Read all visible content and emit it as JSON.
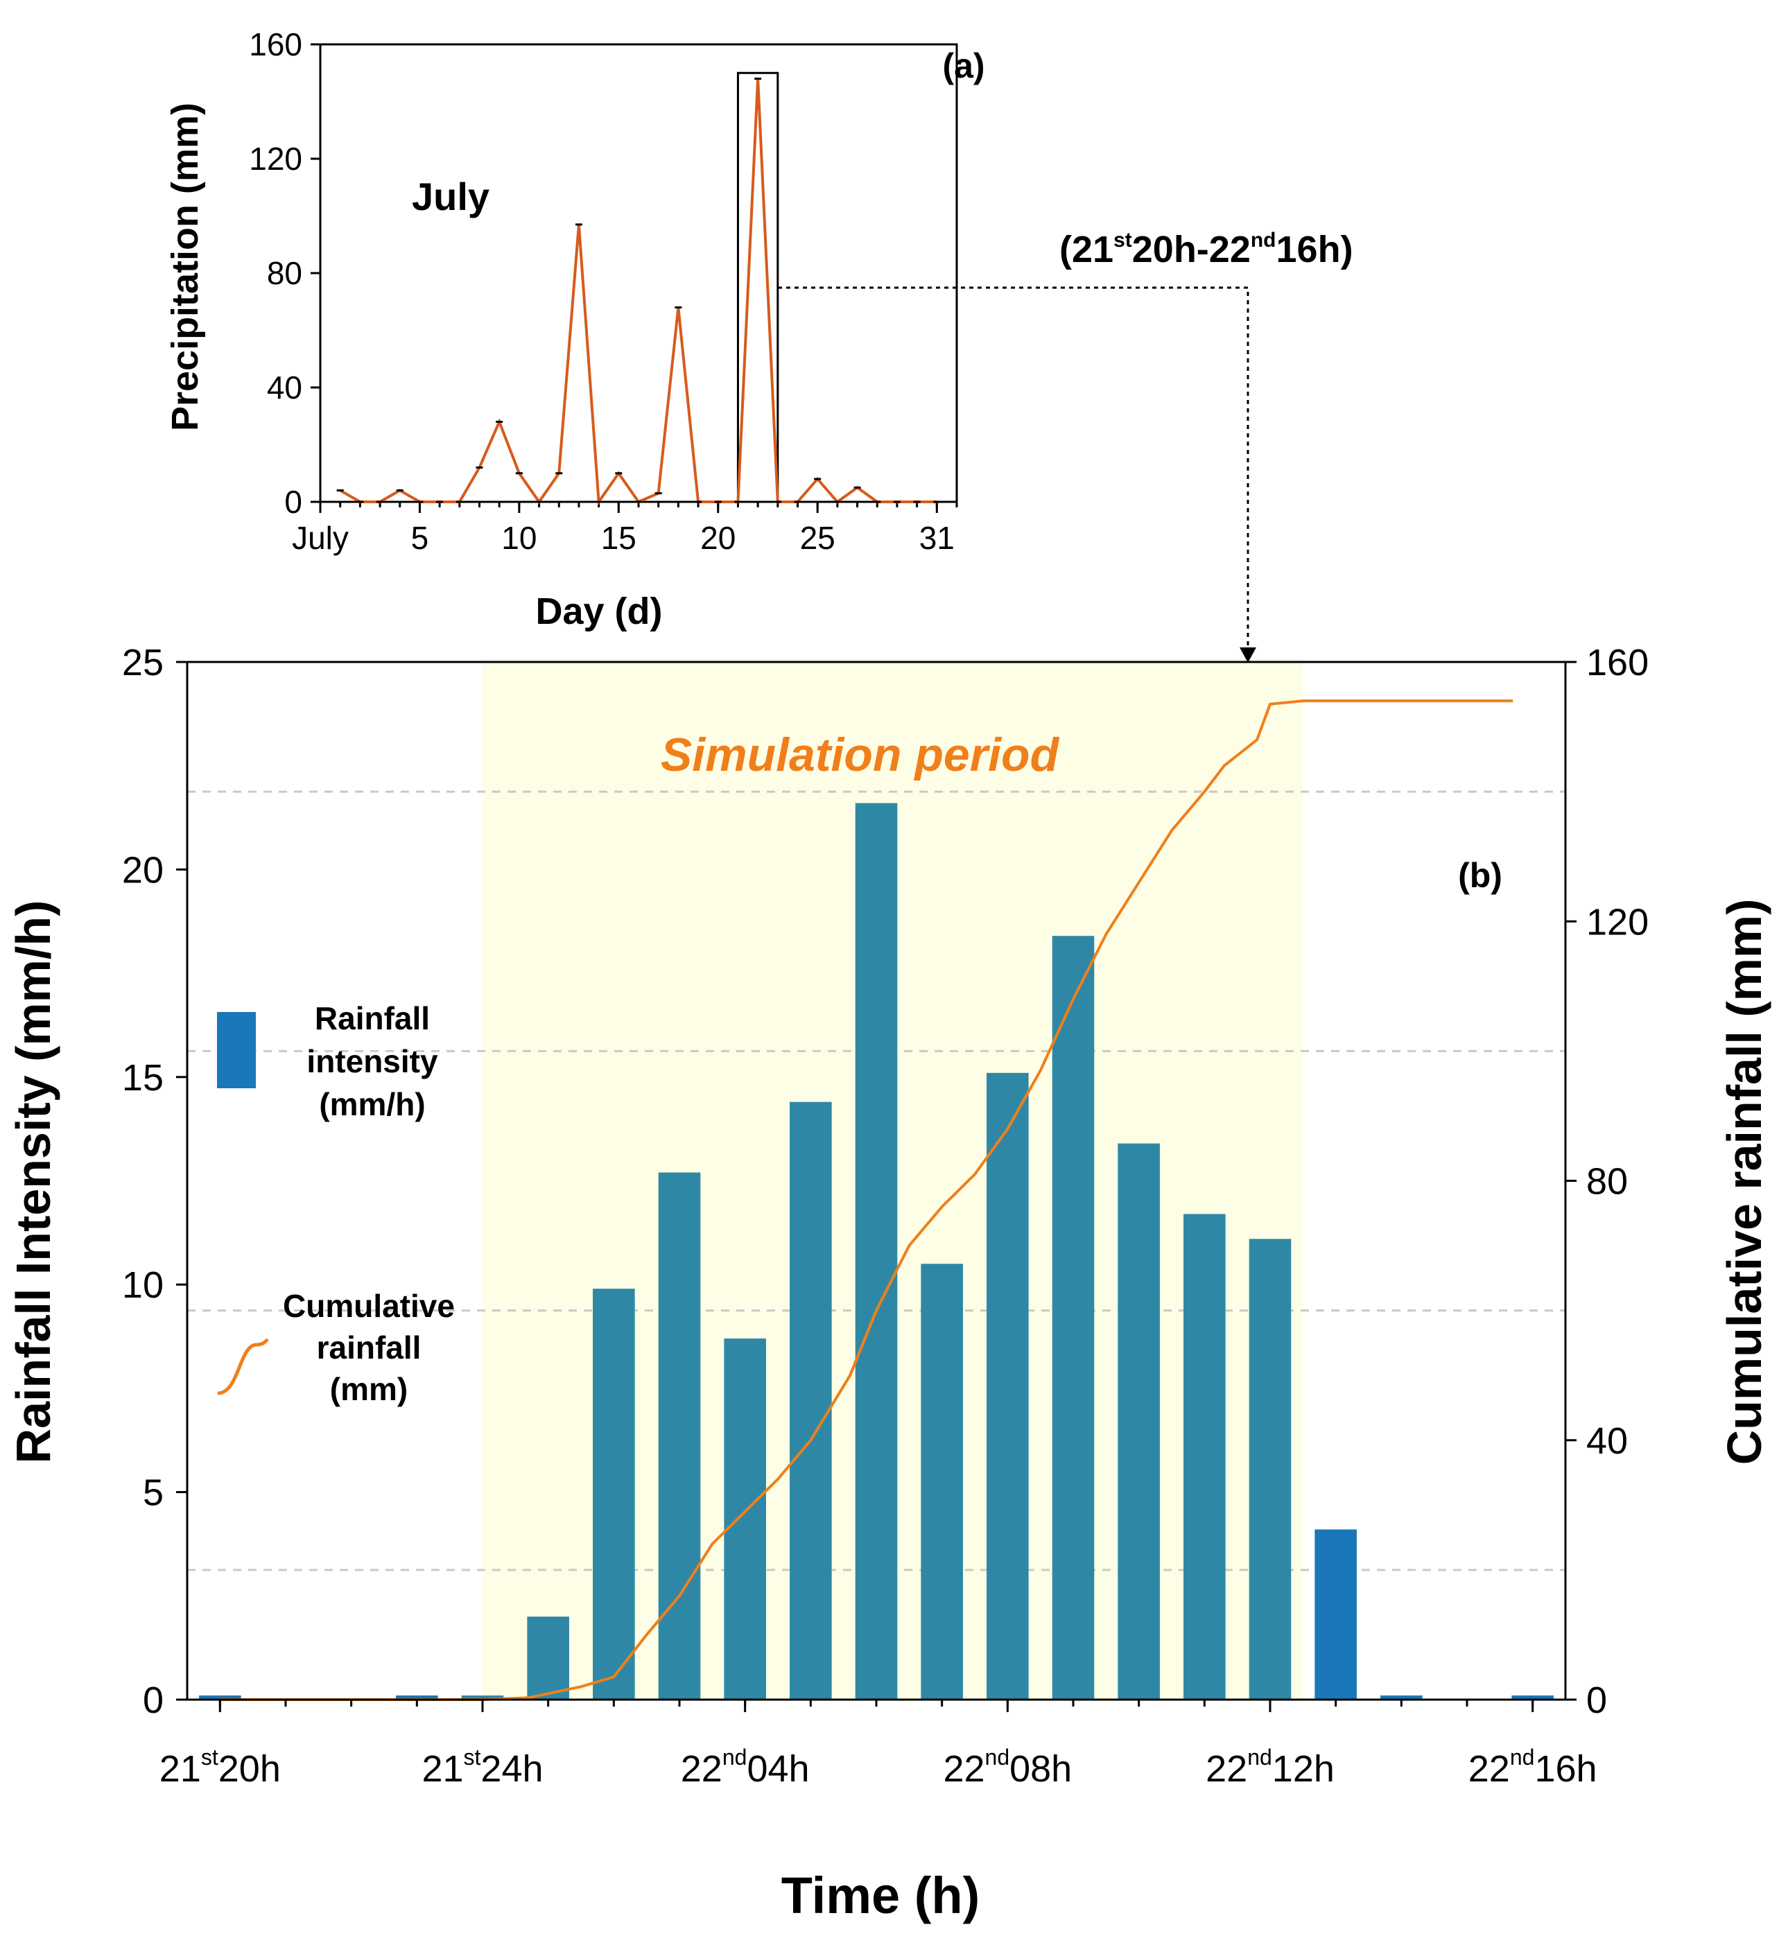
{
  "colors": {
    "bar": "#2e88a5",
    "bar_outside": "#1a78b8",
    "line": "#f07f1b",
    "panel_a_line": "#d75b1c",
    "highlight": "#fdfee5",
    "grid": "#c9c9c9"
  },
  "annotation": {
    "range_label": {
      "d1": "21",
      "s1": "st",
      "m": "20h-22",
      "s2": "nd",
      "e": "16h)",
      "open": "("
    }
  },
  "chart_data": [
    {
      "id": "a",
      "type": "line",
      "panel_label": "(a)",
      "annotation": "July",
      "title": "",
      "xlabel": "Day (d)",
      "ylabel": "Precipitation  (mm)",
      "xlim": [
        0,
        32
      ],
      "ylim": [
        0,
        160
      ],
      "yticks": [
        0,
        40,
        80,
        120,
        160
      ],
      "xticks": [
        {
          "v": 0,
          "label": "July"
        },
        {
          "v": 5,
          "label": "5"
        },
        {
          "v": 10,
          "label": "10"
        },
        {
          "v": 15,
          "label": "15"
        },
        {
          "v": 20,
          "label": "20"
        },
        {
          "v": 25,
          "label": "25"
        },
        {
          "v": 31,
          "label": "31"
        }
      ],
      "x": [
        1,
        2,
        3,
        4,
        5,
        6,
        7,
        8,
        9,
        10,
        11,
        12,
        13,
        14,
        15,
        16,
        17,
        18,
        19,
        20,
        21,
        22,
        23,
        24,
        25,
        26,
        27,
        28,
        29,
        30,
        31
      ],
      "y": [
        4,
        0,
        0,
        4,
        0,
        0,
        0,
        12,
        28,
        10,
        0,
        10,
        97,
        0,
        10,
        0,
        3,
        68,
        0,
        0,
        0,
        148,
        0,
        0,
        8,
        0,
        5,
        0,
        0,
        0,
        0
      ],
      "highlight_box": {
        "x0": 21,
        "x1": 23,
        "y0": 0,
        "y1": 150
      }
    },
    {
      "id": "b",
      "type": "bar+line",
      "panel_label": "(b)",
      "annotation": "Simulation period",
      "xlabel": "Time (h)",
      "ylabel_left": "Rainfall Intensity (mm/h)",
      "ylabel_right": "Cumulative rainfall (mm)",
      "ylim_left": [
        0,
        25
      ],
      "ylim_right": [
        0,
        160
      ],
      "yticks_left": [
        0,
        5,
        10,
        15,
        20,
        25
      ],
      "yticks_right": [
        0,
        40,
        80,
        120,
        160
      ],
      "xlim": [
        -0.5,
        20.5
      ],
      "highlight_range": [
        4,
        16.5
      ],
      "grid_right_values": [
        20,
        60,
        100,
        140
      ],
      "xticks": [
        {
          "v": 0,
          "d": "21",
          "s": "st",
          "h": "20h"
        },
        {
          "v": 4,
          "d": "21",
          "s": "st",
          "h": "24h"
        },
        {
          "v": 8,
          "d": "22",
          "s": "nd",
          "h": "04h"
        },
        {
          "v": 12,
          "d": "22",
          "s": "nd",
          "h": "08h"
        },
        {
          "v": 16,
          "d": "22",
          "s": "nd",
          "h": "12h"
        },
        {
          "v": 20,
          "d": "22",
          "s": "nd",
          "h": "16h"
        }
      ],
      "series": [
        {
          "name": "Rainfall intensity (mm/h)",
          "type": "bar",
          "axis": "left",
          "x": [
            0,
            1,
            2,
            3,
            4,
            5,
            6,
            7,
            8,
            9,
            10,
            11,
            12,
            13,
            14,
            15,
            16,
            17,
            18,
            19,
            20
          ],
          "values": [
            0.1,
            0,
            0,
            0.1,
            0.1,
            2.0,
            9.9,
            12.7,
            8.7,
            14.4,
            21.6,
            10.5,
            15.1,
            18.4,
            13.4,
            11.7,
            11.1,
            4.1,
            0.1,
            0,
            0.1
          ]
        },
        {
          "name": "Cumulative rainfall (mm)",
          "type": "line",
          "axis": "right",
          "x": [
            0,
            1,
            2,
            3,
            4,
            4.7,
            5.5,
            6.0,
            6.5,
            7.0,
            7.5,
            8.0,
            8.5,
            9.0,
            9.6,
            10.0,
            10.5,
            11.0,
            11.5,
            12.0,
            12.5,
            13.0,
            13.5,
            14.0,
            14.5,
            15.0,
            15.3,
            15.8,
            16.0,
            16.5,
            17.0,
            18.0,
            19.0,
            19.7
          ],
          "values": [
            0,
            0,
            0,
            0,
            0,
            0.3,
            2,
            3.5,
            10,
            16,
            24,
            29,
            34,
            40,
            50,
            60,
            70,
            76,
            81,
            88,
            97,
            108,
            118,
            126,
            134,
            140,
            144,
            148,
            153.5,
            154,
            154,
            154,
            154,
            154
          ]
        }
      ],
      "legend": [
        {
          "kind": "bar",
          "lines": [
            "Rainfall",
            "intensity",
            "(mm/h)"
          ]
        },
        {
          "kind": "line",
          "lines": [
            "Cumulative",
            "rainfall",
            "(mm)"
          ]
        }
      ]
    }
  ]
}
